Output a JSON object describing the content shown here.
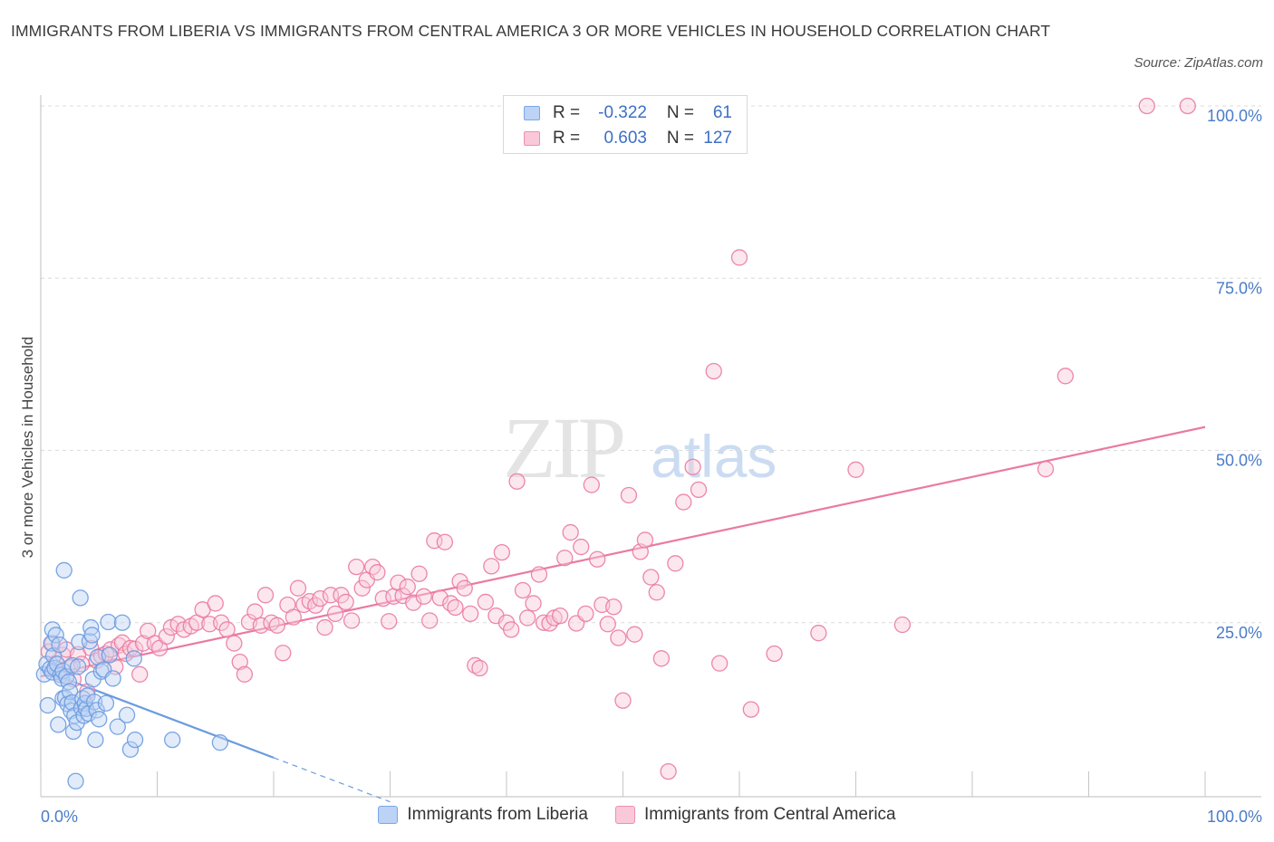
{
  "title": "IMMIGRANTS FROM LIBERIA VS IMMIGRANTS FROM CENTRAL AMERICA 3 OR MORE VEHICLES IN HOUSEHOLD CORRELATION CHART",
  "source": "Source: ZipAtlas.com",
  "watermark": {
    "zip": "ZIP",
    "atlas": "atlas"
  },
  "legend": {
    "rows": [
      {
        "r_label": "R =",
        "r_value": "-0.322",
        "n_label": "N =",
        "n_value": "61",
        "color": "#7aa7e8",
        "fill": "#bcd3f5"
      },
      {
        "r_label": "R =",
        "r_value": "0.603",
        "n_label": "N =",
        "n_value": "127",
        "color": "#ee8fb0",
        "fill": "#f9c9da"
      }
    ]
  },
  "bottom_legend": [
    {
      "label": "Immigrants from Liberia",
      "color": "#7aa7e8",
      "fill": "#bcd3f5"
    },
    {
      "label": "Immigrants from Central America",
      "color": "#ee8fb0",
      "fill": "#f9c9da"
    }
  ],
  "chart_data": {
    "type": "scatter",
    "title": "IMMIGRANTS FROM LIBERIA VS IMMIGRANTS FROM CENTRAL AMERICA 3 OR MORE VEHICLES IN HOUSEHOLD CORRELATION CHART",
    "xlabel": "",
    "ylabel": "3 or more Vehicles in Household",
    "xlim": [
      0,
      100
    ],
    "ylim": [
      0,
      100
    ],
    "x_tick_labels": [
      "0.0%",
      "100.0%"
    ],
    "y_ticks": [
      25,
      50,
      75,
      100
    ],
    "y_tick_labels": [
      "25.0%",
      "50.0%",
      "75.0%",
      "100.0%"
    ],
    "grid": true,
    "series": [
      {
        "name": "Immigrants from Liberia",
        "color": "#6a9be0",
        "fill": "#bcd3f5",
        "trend": {
          "x0": 0,
          "y0": 18.2,
          "x1": 20,
          "y1": 5.4,
          "dash_to_x": 30
        },
        "points": [
          [
            0.3,
            17.5
          ],
          [
            0.5,
            19.0
          ],
          [
            0.6,
            13.0
          ],
          [
            0.8,
            18.3
          ],
          [
            0.9,
            22.0
          ],
          [
            1.0,
            24.0
          ],
          [
            1.0,
            17.8
          ],
          [
            1.1,
            20.2
          ],
          [
            1.2,
            18.4
          ],
          [
            1.3,
            23.2
          ],
          [
            1.4,
            19.0
          ],
          [
            1.5,
            10.2
          ],
          [
            1.6,
            21.8
          ],
          [
            1.7,
            17.4
          ],
          [
            1.8,
            16.9
          ],
          [
            1.9,
            18.0
          ],
          [
            1.9,
            14.0
          ],
          [
            2.0,
            32.6
          ],
          [
            2.1,
            14.1
          ],
          [
            2.2,
            17.2
          ],
          [
            2.3,
            13.2
          ],
          [
            2.4,
            16.4
          ],
          [
            2.5,
            15.0
          ],
          [
            2.6,
            12.2
          ],
          [
            2.7,
            13.4
          ],
          [
            2.7,
            18.8
          ],
          [
            2.8,
            9.2
          ],
          [
            2.9,
            11.5
          ],
          [
            3.0,
            2.0
          ],
          [
            3.1,
            10.5
          ],
          [
            3.2,
            18.6
          ],
          [
            3.3,
            22.2
          ],
          [
            3.4,
            28.6
          ],
          [
            3.5,
            12.6
          ],
          [
            3.6,
            14.0
          ],
          [
            3.7,
            11.5
          ],
          [
            3.8,
            13.3
          ],
          [
            3.9,
            12.5
          ],
          [
            4.0,
            14.4
          ],
          [
            4.1,
            11.8
          ],
          [
            4.2,
            22.3
          ],
          [
            4.3,
            24.3
          ],
          [
            4.4,
            23.2
          ],
          [
            4.5,
            16.8
          ],
          [
            4.6,
            13.5
          ],
          [
            4.7,
            8.0
          ],
          [
            4.8,
            12.3
          ],
          [
            4.9,
            20.0
          ],
          [
            5.0,
            11.0
          ],
          [
            5.2,
            17.9
          ],
          [
            5.4,
            18.2
          ],
          [
            5.6,
            13.3
          ],
          [
            5.8,
            25.1
          ],
          [
            5.9,
            20.3
          ],
          [
            6.2,
            16.9
          ],
          [
            6.6,
            9.9
          ],
          [
            7.0,
            25.0
          ],
          [
            7.4,
            11.6
          ],
          [
            7.7,
            6.6
          ],
          [
            8.0,
            19.8
          ],
          [
            8.1,
            8.0
          ],
          [
            11.3,
            8.0
          ],
          [
            15.4,
            7.6
          ]
        ]
      },
      {
        "name": "Immigrants from Central America",
        "color": "#ea7aa2",
        "fill": "#f9c9da",
        "trend": {
          "x0": 0,
          "y0": 17.2,
          "x1": 100,
          "y1": 53.4
        },
        "points": [
          [
            0.7,
            20.8
          ],
          [
            1.0,
            22.0
          ],
          [
            1.3,
            19.1
          ],
          [
            1.6,
            17.8
          ],
          [
            1.9,
            20.3
          ],
          [
            2.2,
            21.1
          ],
          [
            2.5,
            18.5
          ],
          [
            2.8,
            16.8
          ],
          [
            3.2,
            20.4
          ],
          [
            3.5,
            19.0
          ],
          [
            4.0,
            15.0
          ],
          [
            4.3,
            21.3
          ],
          [
            4.8,
            19.5
          ],
          [
            5.2,
            20.2
          ],
          [
            5.6,
            20.5
          ],
          [
            6.0,
            21.1
          ],
          [
            6.4,
            18.6
          ],
          [
            6.7,
            21.7
          ],
          [
            7.0,
            22.1
          ],
          [
            7.3,
            20.5
          ],
          [
            7.7,
            21.3
          ],
          [
            8.1,
            21.2
          ],
          [
            8.5,
            17.5
          ],
          [
            8.8,
            22.0
          ],
          [
            9.2,
            23.8
          ],
          [
            9.8,
            22.0
          ],
          [
            10.2,
            21.3
          ],
          [
            10.8,
            23.0
          ],
          [
            11.2,
            24.3
          ],
          [
            11.8,
            24.8
          ],
          [
            12.3,
            24.0
          ],
          [
            12.9,
            24.5
          ],
          [
            13.4,
            25.0
          ],
          [
            13.9,
            26.9
          ],
          [
            14.5,
            24.8
          ],
          [
            15.0,
            27.8
          ],
          [
            15.5,
            25.0
          ],
          [
            16.0,
            24.0
          ],
          [
            16.6,
            22.0
          ],
          [
            17.1,
            19.3
          ],
          [
            17.5,
            17.5
          ],
          [
            17.9,
            25.1
          ],
          [
            18.4,
            26.6
          ],
          [
            18.9,
            24.6
          ],
          [
            19.3,
            29.0
          ],
          [
            19.8,
            25.0
          ],
          [
            20.3,
            24.6
          ],
          [
            20.8,
            20.6
          ],
          [
            21.2,
            27.6
          ],
          [
            21.7,
            25.8
          ],
          [
            22.1,
            30.0
          ],
          [
            22.6,
            27.6
          ],
          [
            23.1,
            28.1
          ],
          [
            23.6,
            27.5
          ],
          [
            24.0,
            28.5
          ],
          [
            24.4,
            24.3
          ],
          [
            24.9,
            29.0
          ],
          [
            25.3,
            26.3
          ],
          [
            25.8,
            29.0
          ],
          [
            26.2,
            28.0
          ],
          [
            26.7,
            25.3
          ],
          [
            27.1,
            33.1
          ],
          [
            27.6,
            30.0
          ],
          [
            28.0,
            31.2
          ],
          [
            28.5,
            33.1
          ],
          [
            28.9,
            32.3
          ],
          [
            29.4,
            28.5
          ],
          [
            29.9,
            25.2
          ],
          [
            30.3,
            28.8
          ],
          [
            30.7,
            30.8
          ],
          [
            31.1,
            28.9
          ],
          [
            31.5,
            30.2
          ],
          [
            32.0,
            27.9
          ],
          [
            32.5,
            32.1
          ],
          [
            32.9,
            28.8
          ],
          [
            33.4,
            25.3
          ],
          [
            33.8,
            36.9
          ],
          [
            34.3,
            28.6
          ],
          [
            34.7,
            36.7
          ],
          [
            35.2,
            27.8
          ],
          [
            35.6,
            27.2
          ],
          [
            36.0,
            31.0
          ],
          [
            36.4,
            30.0
          ],
          [
            36.9,
            26.3
          ],
          [
            37.3,
            18.8
          ],
          [
            37.7,
            18.4
          ],
          [
            38.2,
            28.0
          ],
          [
            38.7,
            33.2
          ],
          [
            39.1,
            26.0
          ],
          [
            39.6,
            35.2
          ],
          [
            40.0,
            25.0
          ],
          [
            40.4,
            24.0
          ],
          [
            40.9,
            45.5
          ],
          [
            41.4,
            29.7
          ],
          [
            41.8,
            25.7
          ],
          [
            42.3,
            27.8
          ],
          [
            42.8,
            32.0
          ],
          [
            43.2,
            25.0
          ],
          [
            43.7,
            24.9
          ],
          [
            44.1,
            25.7
          ],
          [
            44.6,
            26.0
          ],
          [
            45.0,
            34.4
          ],
          [
            45.5,
            38.1
          ],
          [
            46.0,
            24.9
          ],
          [
            46.4,
            36.0
          ],
          [
            46.8,
            26.3
          ],
          [
            47.3,
            45.0
          ],
          [
            47.8,
            34.2
          ],
          [
            48.2,
            27.6
          ],
          [
            48.7,
            24.8
          ],
          [
            49.2,
            27.3
          ],
          [
            49.6,
            22.8
          ],
          [
            50.0,
            13.7
          ],
          [
            50.5,
            43.5
          ],
          [
            51.0,
            23.3
          ],
          [
            51.5,
            35.3
          ],
          [
            51.9,
            37.0
          ],
          [
            52.4,
            31.6
          ],
          [
            52.9,
            29.4
          ],
          [
            53.3,
            19.8
          ],
          [
            53.9,
            3.4
          ],
          [
            54.5,
            33.6
          ],
          [
            55.2,
            42.5
          ],
          [
            56.0,
            47.6
          ],
          [
            56.5,
            44.3
          ],
          [
            57.8,
            61.5
          ],
          [
            58.3,
            19.1
          ],
          [
            60.0,
            78.0
          ],
          [
            61.0,
            12.4
          ],
          [
            63.0,
            20.5
          ],
          [
            70.0,
            47.2
          ],
          [
            88.0,
            60.8
          ],
          [
            95.0,
            100.0
          ],
          [
            98.5,
            100.0
          ],
          [
            86.3,
            47.3
          ],
          [
            66.8,
            23.5
          ],
          [
            74.0,
            24.7
          ]
        ]
      }
    ]
  }
}
